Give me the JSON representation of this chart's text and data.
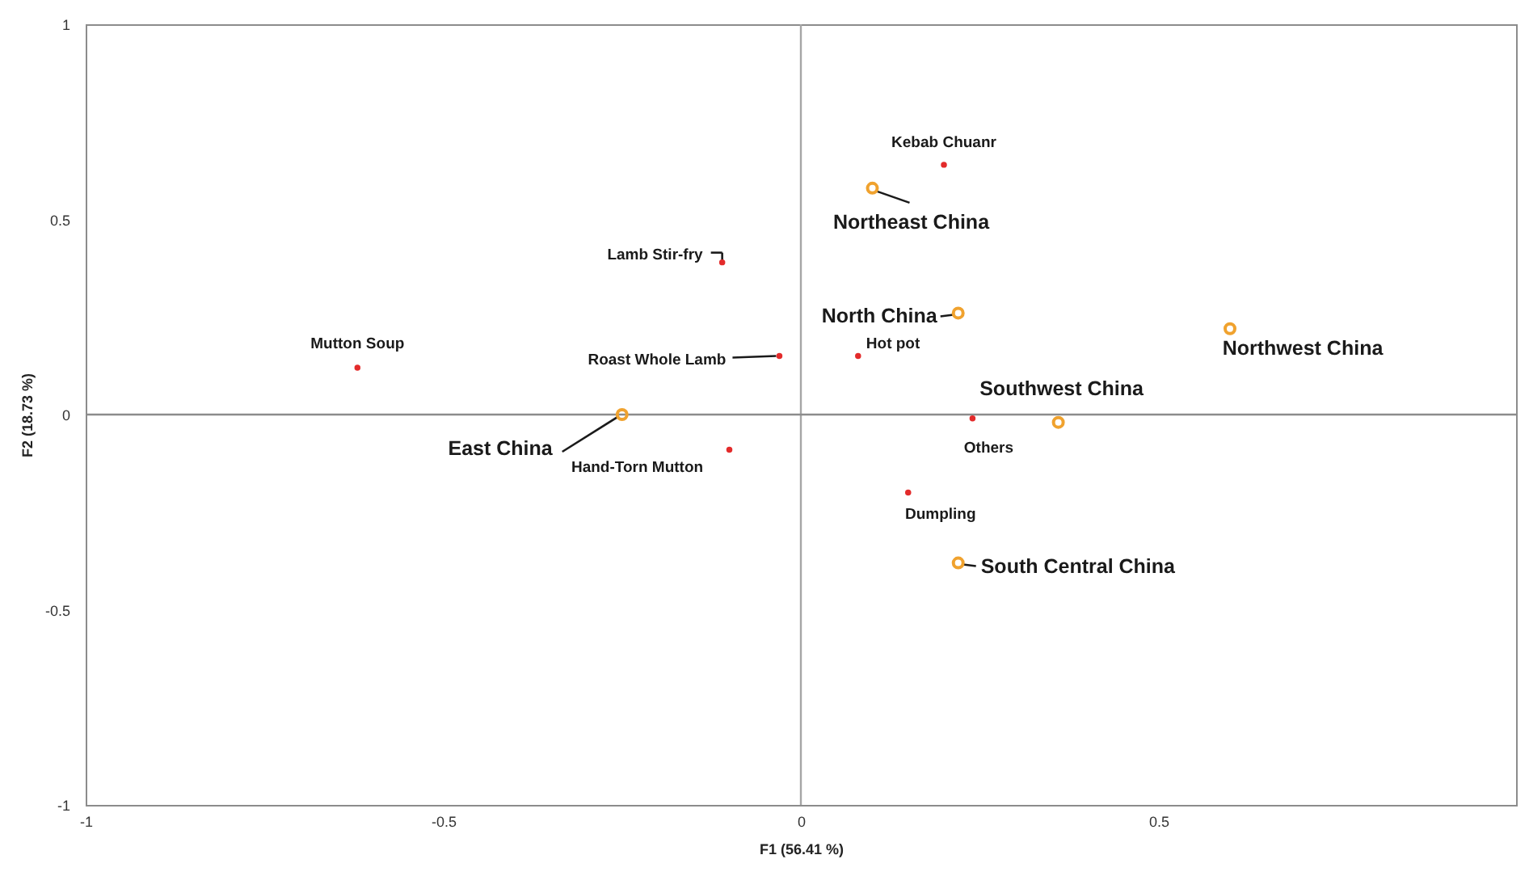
{
  "chart_data": {
    "type": "scatter",
    "xlabel": "F1 (56.41 %)",
    "ylabel": "F2 (18.73 %)",
    "xlim": [
      -1,
      1
    ],
    "ylim": [
      -1,
      1
    ],
    "xticks": [
      -1,
      -0.5,
      0,
      0.5
    ],
    "yticks": [
      -1,
      -0.5,
      0,
      0.5,
      1
    ],
    "marker": "circle",
    "series": [
      {
        "color": "#e32b2b",
        "x": [
          0.2,
          -0.11,
          -0.62,
          -0.03,
          0.08,
          -0.1,
          0.24,
          0.15
        ],
        "values": [
          0.64,
          0.39,
          0.12,
          0.15,
          0.15,
          -0.09,
          -0.01,
          -0.2
        ]
      },
      {
        "color": "#f0a22e",
        "x": [
          0.1,
          0.22,
          0.6,
          0.36,
          -0.25,
          0.22
        ],
        "values": [
          0.58,
          0.26,
          0.22,
          -0.02,
          0.0,
          -0.38
        ]
      }
    ],
    "ref_lines": [
      {
        "axis": "x",
        "value": 0,
        "color": "#a6a6a6"
      },
      {
        "axis": "y",
        "value": 0,
        "color": "#8c8c8c"
      }
    ],
    "annotations": [
      {
        "text": "Kebab Chuanr",
        "x": 0.2,
        "y": 0.64
      },
      {
        "text": "Lamb Stir-fry",
        "x": -0.11,
        "y": 0.39
      },
      {
        "text": "Mutton Soup",
        "x": -0.62,
        "y": 0.12
      },
      {
        "text": "Roast Whole Lamb",
        "x": -0.03,
        "y": 0.15
      },
      {
        "text": "Hot pot",
        "x": 0.08,
        "y": 0.15
      },
      {
        "text": "Hand-Torn Mutton",
        "x": -0.1,
        "y": -0.09
      },
      {
        "text": "Others",
        "x": 0.24,
        "y": -0.01
      },
      {
        "text": "Dumpling",
        "x": 0.15,
        "y": -0.2
      },
      {
        "text": "Northeast China",
        "x": 0.1,
        "y": 0.58
      },
      {
        "text": "North China",
        "x": 0.22,
        "y": 0.26
      },
      {
        "text": "Northwest China",
        "x": 0.6,
        "y": 0.22
      },
      {
        "text": "Southwest China",
        "x": 0.36,
        "y": -0.02
      },
      {
        "text": "East China",
        "x": -0.25,
        "y": 0.0
      },
      {
        "text": "South Central China",
        "x": 0.22,
        "y": -0.38
      }
    ]
  }
}
